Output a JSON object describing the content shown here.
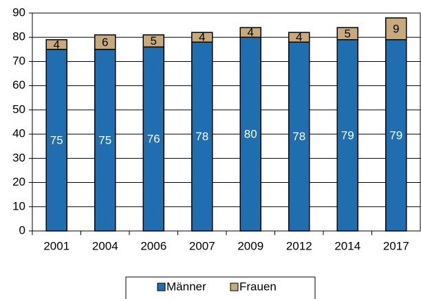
{
  "chart_data": {
    "type": "stacked_bar",
    "categories": [
      "2001",
      "2004",
      "2006",
      "2007",
      "2009",
      "2012",
      "2014",
      "2017"
    ],
    "series": [
      {
        "name": "Männer",
        "color": "#1f6fb0",
        "label_color": "#ffffff",
        "values": [
          75,
          75,
          76,
          78,
          80,
          78,
          79,
          79
        ]
      },
      {
        "name": "Frauen",
        "color": "#c8a97a",
        "label_color": "#000000",
        "values": [
          4,
          6,
          5,
          4,
          4,
          4,
          5,
          9
        ]
      }
    ],
    "ylim": [
      0,
      90
    ],
    "yticks": [
      0,
      10,
      20,
      30,
      40,
      50,
      60,
      70,
      80,
      90
    ],
    "grid": true,
    "legend": "bottom"
  }
}
